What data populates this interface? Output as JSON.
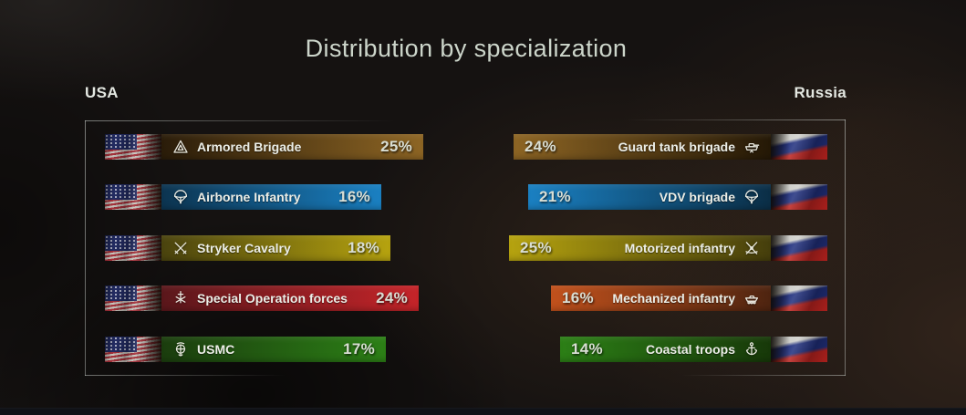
{
  "title": "Distribution by specialization",
  "columns": {
    "left": {
      "header": "USA"
    },
    "right": {
      "header": "Russia"
    }
  },
  "usa_rows": [
    {
      "label": "Armored Brigade",
      "value": "25%",
      "pct": 25,
      "icon": "armored-triangle-icon",
      "bright": "#8d6524",
      "dark": "#2a1c09"
    },
    {
      "label": "Airborne Infantry",
      "value": "16%",
      "pct": 16,
      "icon": "parachute-icon",
      "bright": "#1a80c2",
      "dark": "#0c3450"
    },
    {
      "label": "Stryker Cavalry",
      "value": "18%",
      "pct": 18,
      "icon": "crossed-sabers-icon",
      "bright": "#b6a30f",
      "dark": "#4a430e"
    },
    {
      "label": "Special Operation forces",
      "value": "24%",
      "pct": 24,
      "icon": "dagger-arrows-icon",
      "bright": "#c52429",
      "dark": "#5a171b"
    },
    {
      "label": "USMC",
      "value": "17%",
      "pct": 17,
      "icon": "eagle-globe-anchor-icon",
      "bright": "#2c7f16",
      "dark": "#1b3d0e"
    }
  ],
  "russia_rows": [
    {
      "label": "Guard tank brigade",
      "value": "24%",
      "pct": 24,
      "icon": "tank-icon",
      "bright": "#8d6524",
      "dark": "#241806"
    },
    {
      "label": "VDV brigade",
      "value": "21%",
      "pct": 21,
      "icon": "parachute-icon",
      "bright": "#1a80c2",
      "dark": "#0b2e46"
    },
    {
      "label": "Motorized infantry",
      "value": "25%",
      "pct": 25,
      "icon": "crossed-rifles-icon",
      "bright": "#b6a30f",
      "dark": "#453e0c"
    },
    {
      "label": "Mechanized infantry",
      "value": "16%",
      "pct": 16,
      "icon": "apc-icon",
      "bright": "#c1511c",
      "dark": "#4e2410"
    },
    {
      "label": "Coastal troops",
      "value": "14%",
      "pct": 14,
      "icon": "anchor-icon",
      "bright": "#2c7f16",
      "dark": "#173809"
    }
  ],
  "chart_data": {
    "type": "bar",
    "title": "Distribution by specialization",
    "orientation": "horizontal-mirrored",
    "unit": "%",
    "series": [
      {
        "name": "USA",
        "categories": [
          "Armored Brigade",
          "Airborne Infantry",
          "Stryker Cavalry",
          "Special Operation forces",
          "USMC"
        ],
        "values": [
          25,
          16,
          18,
          24,
          17
        ]
      },
      {
        "name": "Russia",
        "categories": [
          "Guard tank brigade",
          "VDV brigade",
          "Motorized infantry",
          "Mechanized infantry",
          "Coastal troops"
        ],
        "values": [
          24,
          21,
          25,
          16,
          14
        ]
      }
    ],
    "colors": [
      "#8d6524",
      "#1a80c2",
      "#b6a30f",
      "#c52429",
      "#2c7f16",
      "#c1511c"
    ],
    "legend_position": "column-headers"
  }
}
